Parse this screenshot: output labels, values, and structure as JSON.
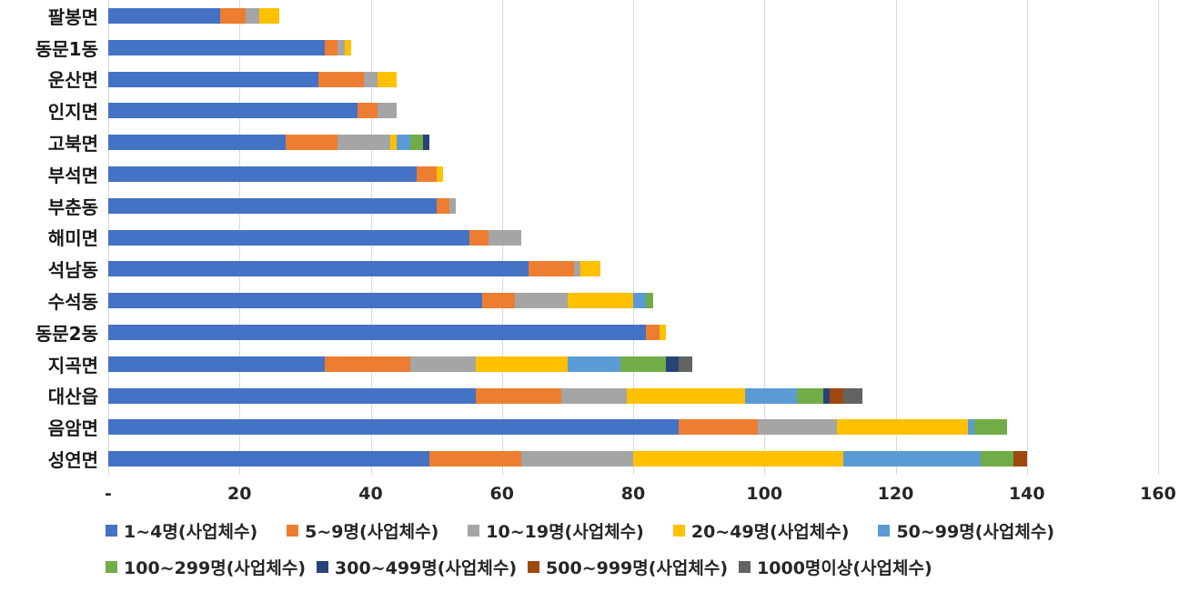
{
  "chart_data": {
    "type": "bar",
    "orientation": "horizontal-stacked",
    "title": "",
    "xlabel": "",
    "ylabel": "",
    "xlim": [
      0,
      160
    ],
    "grid": "vertical",
    "legend_position": "bottom",
    "legend_rows": [
      5,
      4
    ],
    "categories": [
      "팔봉면",
      "동문1동",
      "운산면",
      "인지면",
      "고북면",
      "부석면",
      "부춘동",
      "해미면",
      "석남동",
      "수석동",
      "동문2동",
      "지곡면",
      "대산읍",
      "음암면",
      "성연면"
    ],
    "x_ticks": [
      {
        "label": "-",
        "value": 0
      },
      {
        "label": "20",
        "value": 20
      },
      {
        "label": "40",
        "value": 40
      },
      {
        "label": "60",
        "value": 60
      },
      {
        "label": "80",
        "value": 80
      },
      {
        "label": "100",
        "value": 100
      },
      {
        "label": "120",
        "value": 120
      },
      {
        "label": "140",
        "value": 140
      },
      {
        "label": "160",
        "value": 160
      }
    ],
    "series": [
      {
        "name": "1~4명(사업체수)",
        "color": "#4472C4",
        "values": [
          17,
          33,
          32,
          38,
          27,
          47,
          50,
          55,
          64,
          57,
          82,
          33,
          56,
          87,
          49
        ]
      },
      {
        "name": "5~9명(사업체수)",
        "color": "#ED7D31",
        "values": [
          4,
          2,
          7,
          3,
          8,
          3,
          2,
          3,
          7,
          5,
          2,
          13,
          13,
          12,
          14
        ]
      },
      {
        "name": "10~19명(사업체수)",
        "color": "#A5A5A5",
        "values": [
          2,
          1,
          2,
          3,
          8,
          0,
          1,
          5,
          1,
          8,
          0,
          10,
          10,
          12,
          17
        ]
      },
      {
        "name": "20~49명(사업체수)",
        "color": "#FFC000",
        "values": [
          3,
          1,
          3,
          0,
          1,
          1,
          0,
          0,
          3,
          10,
          1,
          14,
          18,
          20,
          32
        ]
      },
      {
        "name": "50~99명(사업체수)",
        "color": "#5B9BD5",
        "values": [
          0,
          0,
          0,
          0,
          2,
          0,
          0,
          0,
          0,
          2,
          0,
          8,
          8,
          1,
          21
        ]
      },
      {
        "name": "100~299명(사업체수)",
        "color": "#70AD47",
        "values": [
          0,
          0,
          0,
          0,
          2,
          0,
          0,
          0,
          0,
          1,
          0,
          7,
          4,
          5,
          5
        ]
      },
      {
        "name": "300~499명(사업체수)",
        "color": "#264478",
        "values": [
          0,
          0,
          0,
          0,
          1,
          0,
          0,
          0,
          0,
          0,
          0,
          2,
          1,
          0,
          0
        ]
      },
      {
        "name": "500~999명(사업체수)",
        "color": "#9E480E",
        "values": [
          0,
          0,
          0,
          0,
          0,
          0,
          0,
          0,
          0,
          0,
          0,
          0,
          2,
          0,
          2
        ]
      },
      {
        "name": "1000명이상(사업체수)",
        "color": "#636363",
        "values": [
          0,
          0,
          0,
          0,
          0,
          0,
          0,
          0,
          0,
          0,
          0,
          2,
          3,
          0,
          0
        ]
      }
    ]
  },
  "colors": {
    "background": "#FFFFFF",
    "gridline": "#D9D9D9",
    "category_text": "#191919",
    "axis_text": "#262626",
    "legend_text": "#262626"
  }
}
